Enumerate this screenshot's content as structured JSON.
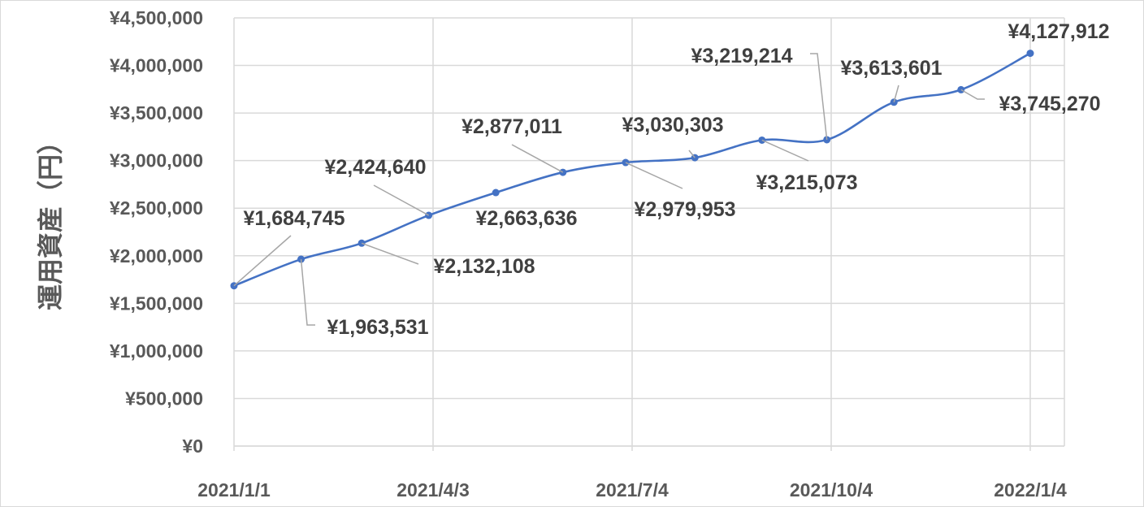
{
  "chart_data": {
    "type": "line",
    "title": "",
    "xlabel": "",
    "ylabel": "運用資産（円）",
    "smooth": true,
    "markers": true,
    "grid": true,
    "legend": "none",
    "color": "#4472C4",
    "ylim": [
      0,
      4500000
    ],
    "y_ticks": [
      0,
      500000,
      1000000,
      1500000,
      2000000,
      2500000,
      3000000,
      3500000,
      4000000,
      4500000
    ],
    "y_tick_labels": [
      "¥0",
      "¥500,000",
      "¥1,000,000",
      "¥1,500,000",
      "¥2,000,000",
      "¥2,500,000",
      "¥3,000,000",
      "¥3,500,000",
      "¥4,000,000",
      "¥4,500,000"
    ],
    "x_ticks": [
      "2021/1/1",
      "2021/4/3",
      "2021/7/4",
      "2021/10/4",
      "2022/1/4"
    ],
    "x": [
      "2021/1/1",
      "2021/2/1",
      "2021/3/1",
      "2021/4/1",
      "2021/5/2",
      "2021/6/2",
      "2021/7/1",
      "2021/8/2",
      "2021/9/2",
      "2021/10/2",
      "2021/11/2",
      "2021/12/3",
      "2022/1/4"
    ],
    "values": [
      1684745,
      1963531,
      2132108,
      2424640,
      2663636,
      2877011,
      2979953,
      3030303,
      3215073,
      3219214,
      3613601,
      3745270,
      4127912
    ],
    "data_labels": [
      "¥1,684,745",
      "¥1,963,531",
      "¥2,132,108",
      "¥2,424,640",
      "¥2,663,636",
      "¥2,877,011",
      "¥2,979,953",
      "¥3,030,303",
      "¥3,215,073",
      "¥3,219,214",
      "¥3,613,601",
      "¥3,745,270",
      "¥4,127,912"
    ]
  }
}
